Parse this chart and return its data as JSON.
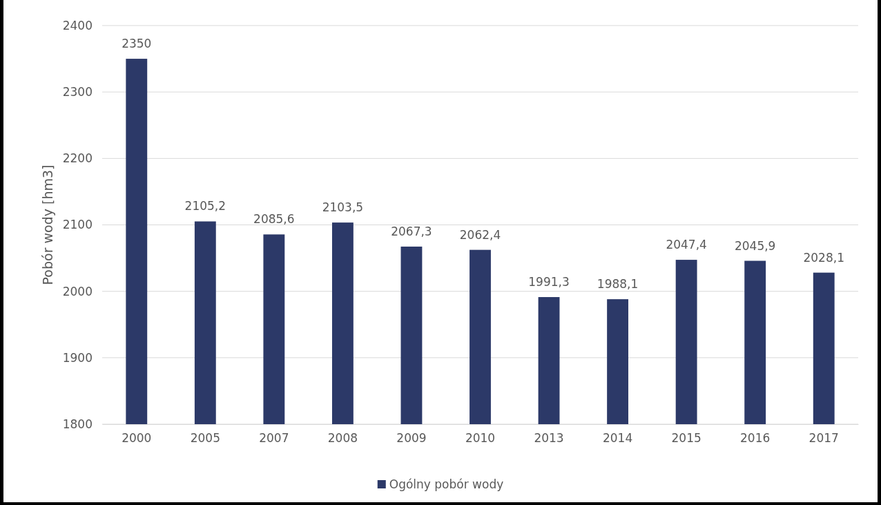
{
  "chart_data": {
    "type": "bar",
    "ylabel": "Pobór wody [hm3]",
    "categories": [
      "2000",
      "2005",
      "2007",
      "2008",
      "2009",
      "2010",
      "2013",
      "2014",
      "2015",
      "2016",
      "2017"
    ],
    "series": [
      {
        "name": "Ogólny pobór wody",
        "color": "#2c3968",
        "values": [
          2350,
          2105.2,
          2085.6,
          2103.5,
          2067.3,
          2062.4,
          1991.3,
          1988.1,
          2047.4,
          2045.9,
          2028.1
        ],
        "value_labels": [
          "2350",
          "2105,2",
          "2085,6",
          "2103,5",
          "2067,3",
          "2062,4",
          "1991,3",
          "1988,1",
          "2047,4",
          "2045,9",
          "2028,1"
        ]
      }
    ],
    "ylim": [
      1800,
      2400
    ],
    "yticks": [
      1800,
      1900,
      2000,
      2100,
      2200,
      2300,
      2400
    ],
    "grid": "y",
    "legend": "bottom"
  }
}
